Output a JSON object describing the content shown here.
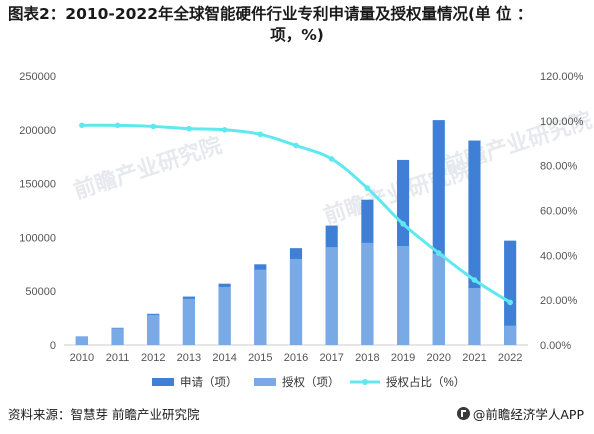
{
  "title": {
    "line1": "图表2：2010-2022年全球智能硬件行业专利申请量及授权量情况(单 位 ：",
    "line2": "项，%)"
  },
  "footer": {
    "source": "资料来源：智慧芽 前瞻产业研究院",
    "brand": "@前瞻经济学人APP"
  },
  "watermark": {
    "text": "前瞻产业研究院"
  },
  "colors": {
    "apply": "#3F7FD6",
    "grant": "#7AAAE6",
    "ratio": "#5FE8F0",
    "axis": "#cccccc",
    "tick_text": "#555555"
  },
  "chart_data": {
    "type": "bar",
    "categories": [
      "2010",
      "2011",
      "2012",
      "2013",
      "2014",
      "2015",
      "2016",
      "2017",
      "2018",
      "2019",
      "2020",
      "2021",
      "2022"
    ],
    "series": [
      {
        "name": "申请（项）",
        "kind": "bar",
        "values": [
          8000,
          16000,
          29000,
          45000,
          57000,
          75000,
          90000,
          111000,
          135000,
          172000,
          209000,
          190000,
          97000
        ]
      },
      {
        "name": "授权（项）",
        "kind": "bar",
        "values": [
          7800,
          15500,
          28000,
          43000,
          54000,
          70000,
          80000,
          91000,
          95000,
          92000,
          85000,
          53000,
          18000
        ]
      },
      {
        "name": "授权占比（%）",
        "kind": "line",
        "axis": "right",
        "values": [
          98,
          98,
          97.5,
          96.5,
          96,
          94,
          89,
          83,
          70,
          54,
          41,
          29,
          19
        ]
      }
    ],
    "y_left": {
      "min": 0,
      "max": 250000,
      "ticks": [
        0,
        50000,
        100000,
        150000,
        200000,
        250000
      ]
    },
    "y_right": {
      "min": 0,
      "max": 120,
      "ticks": [
        "0.00%",
        "20.00%",
        "40.00%",
        "60.00%",
        "80.00%",
        "100.00%",
        "120.00%"
      ]
    },
    "legend_position": "bottom",
    "grid": false
  }
}
